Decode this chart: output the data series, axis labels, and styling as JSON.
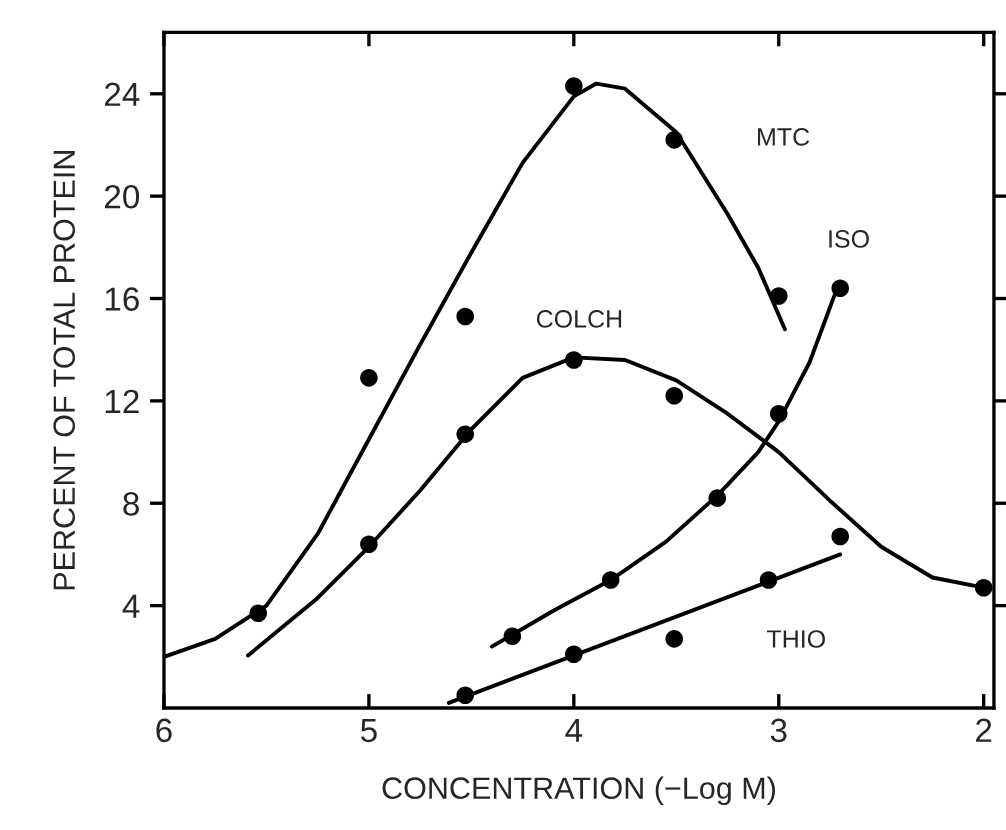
{
  "chart_data": {
    "type": "scatter",
    "xlabel": "CONCENTRATION (−Log M)",
    "ylabel": "PERCENT OF TOTAL PROTEIN",
    "xlim": [
      6,
      1.95
    ],
    "ylim": [
      0,
      26.4
    ],
    "xticks": [
      6,
      5,
      4,
      3,
      2
    ],
    "yticks": [
      4,
      8,
      12,
      16,
      20,
      24
    ],
    "grid": false,
    "line_style": "solid",
    "series": [
      {
        "marker": "circle",
        "color": "#000000",
        "x": [
          5.54,
          5.0,
          4.53,
          4.0,
          3.51,
          3.0
        ],
        "values": [
          3.7,
          12.9,
          15.3,
          24.3,
          22.2,
          16.1
        ]
      },
      {
        "type": "line",
        "color": "#000000",
        "x": [
          6.0,
          5.75,
          5.5,
          5.25,
          5.0,
          4.75,
          4.5,
          4.25,
          4.0,
          3.89,
          3.75,
          3.5,
          3.25,
          3.1,
          2.97
        ],
        "values": [
          2.0,
          2.7,
          4.0,
          6.8,
          10.5,
          14.2,
          17.8,
          21.3,
          23.9,
          24.4,
          24.2,
          22.5,
          19.3,
          17.2,
          14.8
        ]
      },
      {
        "marker": "circle",
        "color": "#000000",
        "x": [
          5.0,
          4.53,
          4.0,
          3.51,
          2.0
        ],
        "values": [
          6.4,
          10.7,
          13.6,
          12.2,
          4.7
        ]
      },
      {
        "type": "line",
        "color": "#000000",
        "x": [
          5.59,
          5.25,
          5.0,
          4.75,
          4.5,
          4.25,
          4.0,
          3.75,
          3.5,
          3.25,
          3.0,
          2.75,
          2.5,
          2.25,
          2.0
        ],
        "values": [
          2.05,
          4.3,
          6.3,
          8.5,
          10.9,
          12.9,
          13.7,
          13.6,
          12.8,
          11.5,
          10.0,
          8.1,
          6.3,
          5.1,
          4.7
        ]
      },
      {
        "marker": "circle",
        "color": "#000000",
        "x": [
          4.3,
          3.82,
          3.3,
          3.0,
          2.7
        ],
        "values": [
          2.8,
          5.0,
          8.2,
          11.5,
          16.4
        ]
      },
      {
        "type": "line",
        "color": "#000000",
        "x": [
          4.4,
          4.1,
          3.82,
          3.55,
          3.3,
          3.1,
          3.0,
          2.85,
          2.72
        ],
        "values": [
          2.4,
          3.8,
          5.0,
          6.5,
          8.3,
          10.0,
          11.2,
          13.5,
          16.3
        ]
      },
      {
        "marker": "circle",
        "color": "#000000",
        "x": [
          4.53,
          4.0,
          3.51,
          3.05,
          2.7
        ],
        "values": [
          0.5,
          2.1,
          2.7,
          5.0,
          6.7
        ]
      },
      {
        "type": "line",
        "color": "#000000",
        "x": [
          4.61,
          2.7
        ],
        "values": [
          0.2,
          6.0
        ]
      }
    ],
    "annotations": [
      {
        "text": "MTC",
        "x": 3.25,
        "y": 19.3
      },
      {
        "text": "COLCH",
        "x": 4.0,
        "y": 13.6
      },
      {
        "text": "ISO",
        "x": 2.7,
        "y": 16.4
      },
      {
        "text": "THIO",
        "x": 3.05,
        "y": 5.0
      }
    ]
  }
}
